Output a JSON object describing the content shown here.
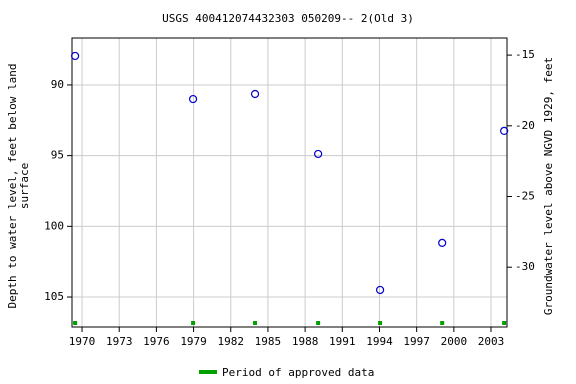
{
  "chart_data": {
    "type": "scatter",
    "title": "USGS 400412074432303 050209-- 2(Old 3)",
    "ylabel": [
      "Depth to water level, feet below land",
      "surface"
    ],
    "y2label": "Groundwater level above NGVD 1929, feet",
    "xlim": [
      1969.19,
      2004.29
    ],
    "xticks": [
      1970,
      1973,
      1976,
      1979,
      1982,
      1985,
      1988,
      1991,
      1994,
      1997,
      2000,
      2003
    ],
    "ylim": [
      86.68,
      107.12
    ],
    "yticks": [
      90,
      95,
      100,
      105
    ],
    "y_inverted": true,
    "y2lim": [
      -13.79,
      -34.23
    ],
    "y2ticks": [
      -15,
      -20,
      -25,
      -30
    ],
    "grid": true,
    "series": [
      {
        "name": "Depth to water level",
        "color": "#0000cc",
        "x": [
          1969.44,
          1978.96,
          1983.96,
          1989.05,
          1994.05,
          1999.06,
          2004.06
        ],
        "values": [
          87.95,
          91.0,
          90.64,
          94.88,
          104.5,
          101.17,
          93.25
        ]
      },
      {
        "name": "Period of approved data",
        "color": "#00a000",
        "x": [
          1969.44,
          1978.96,
          1983.96,
          1989.05,
          1994.05,
          1999.06,
          2004.06
        ]
      }
    ]
  }
}
